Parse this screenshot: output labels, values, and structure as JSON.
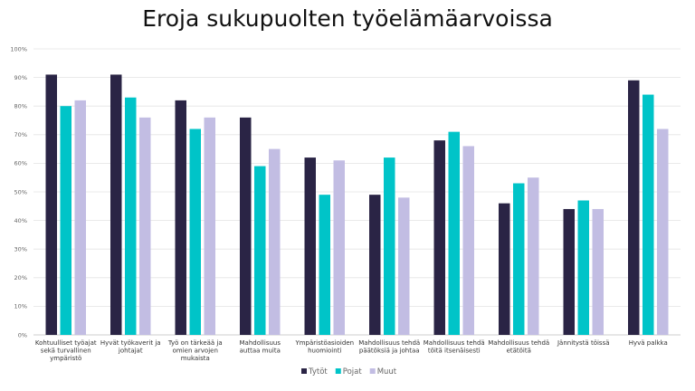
{
  "chart_data": {
    "type": "bar",
    "title": "Eroja sukupuolten työelämäarvoissa",
    "xlabel": "",
    "ylabel": "",
    "ylim": [
      0,
      100
    ],
    "yticks": [
      "0%",
      "10%",
      "20%",
      "30%",
      "40%",
      "50%",
      "60%",
      "70%",
      "80%",
      "90%",
      "100%"
    ],
    "grid": true,
    "legend_placement": "bottom",
    "categories": [
      [
        "Kohtuulliset työajat",
        "sekä turvallinen",
        "ympäristö"
      ],
      [
        "Hyvät työkaverit ja",
        "johtajat"
      ],
      [
        "Työ on tärkeää ja",
        "omien arvojen",
        "mukaista"
      ],
      [
        "Mahdollisuus",
        "auttaa muita"
      ],
      [
        "Ympäristöasioiden",
        "huomiointi"
      ],
      [
        "Mahdollisuus tehdä",
        "päätöksiä ja johtaa"
      ],
      [
        "Mahdollisuus tehdä",
        "töitä itsenäisesti"
      ],
      [
        "Mahdollisuus tehdä",
        "etätöitä"
      ],
      [
        "Jännitystä töissä"
      ],
      [
        "Hyvä palkka"
      ]
    ],
    "series": [
      {
        "name": "Tytöt",
        "color": "#2a2445",
        "values": [
          91,
          91,
          82,
          76,
          62,
          49,
          68,
          46,
          44,
          89
        ]
      },
      {
        "name": "Pojat",
        "color": "#00c4c8",
        "values": [
          80,
          83,
          72,
          59,
          49,
          62,
          71,
          53,
          47,
          84
        ]
      },
      {
        "name": "Muut",
        "color": "#c2bde3",
        "values": [
          82,
          76,
          76,
          65,
          61,
          48,
          66,
          55,
          44,
          72
        ]
      }
    ]
  }
}
